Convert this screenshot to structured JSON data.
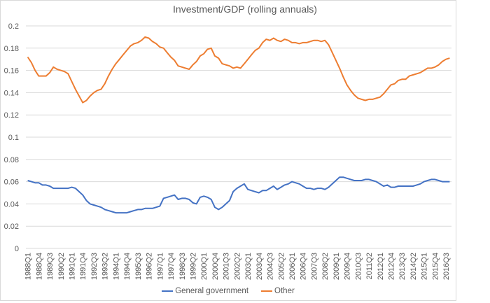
{
  "chart_data": {
    "type": "line",
    "title": "Investment/GDP  (rolling annuals)",
    "xlabel": "",
    "ylabel": "",
    "ylim": [
      0,
      0.2
    ],
    "y_ticks": [
      "0",
      "0.02",
      "0.04",
      "0.06",
      "0.08",
      "0.1",
      "0.12",
      "0.14",
      "0.16",
      "0.18",
      "0.2"
    ],
    "grid": true,
    "legend": "bottom",
    "label_every": 3,
    "categories": [
      "1988Q1",
      "1988Q2",
      "1988Q3",
      "1988Q4",
      "1989Q1",
      "1989Q2",
      "1989Q3",
      "1989Q4",
      "1990Q1",
      "1990Q2",
      "1990Q3",
      "1990Q4",
      "1991Q1",
      "1991Q2",
      "1991Q3",
      "1991Q4",
      "1992Q1",
      "1992Q2",
      "1992Q3",
      "1992Q4",
      "1993Q1",
      "1993Q2",
      "1993Q3",
      "1993Q4",
      "1994Q1",
      "1994Q2",
      "1994Q3",
      "1994Q4",
      "1995Q1",
      "1995Q2",
      "1995Q3",
      "1995Q4",
      "1996Q1",
      "1996Q2",
      "1996Q3",
      "1996Q4",
      "1997Q1",
      "1997Q2",
      "1997Q3",
      "1997Q4",
      "1998Q1",
      "1998Q2",
      "1998Q3",
      "1998Q4",
      "1999Q1",
      "1999Q2",
      "1999Q3",
      "1999Q4",
      "2000Q1",
      "2000Q2",
      "2000Q3",
      "2000Q4",
      "2001Q1",
      "2001Q2",
      "2001Q3",
      "2001Q4",
      "2002Q1",
      "2002Q2",
      "2002Q3",
      "2002Q4",
      "2003Q1",
      "2003Q2",
      "2003Q3",
      "2003Q4",
      "2004Q1",
      "2004Q2",
      "2004Q3",
      "2004Q4",
      "2005Q1",
      "2005Q2",
      "2005Q3",
      "2005Q4",
      "2006Q1",
      "2006Q2",
      "2006Q3",
      "2006Q4",
      "2007Q1",
      "2007Q2",
      "2007Q3",
      "2007Q4",
      "2008Q1",
      "2008Q2",
      "2008Q3",
      "2008Q4",
      "2009Q1",
      "2009Q2",
      "2009Q3",
      "2009Q4",
      "2010Q1",
      "2010Q2",
      "2010Q3",
      "2010Q4",
      "2011Q1",
      "2011Q2",
      "2011Q3",
      "2011Q4",
      "2012Q1",
      "2012Q2",
      "2012Q3",
      "2012Q4",
      "2013Q1",
      "2013Q2",
      "2013Q3",
      "2013Q4",
      "2014Q1",
      "2014Q2",
      "2014Q3",
      "2014Q4",
      "2015Q1",
      "2015Q2",
      "2015Q3",
      "2015Q4",
      "2016Q1",
      "2016Q2",
      "2016Q3",
      "2016Q4"
    ],
    "series": [
      {
        "name": "General government",
        "color": "#4472C4",
        "values": [
          0.061,
          0.06,
          0.059,
          0.059,
          0.057,
          0.057,
          0.056,
          0.054,
          0.054,
          0.054,
          0.054,
          0.054,
          0.055,
          0.054,
          0.051,
          0.048,
          0.043,
          0.04,
          0.039,
          0.038,
          0.037,
          0.035,
          0.034,
          0.033,
          0.032,
          0.032,
          0.032,
          0.032,
          0.033,
          0.034,
          0.035,
          0.035,
          0.036,
          0.036,
          0.036,
          0.037,
          0.038,
          0.045,
          0.046,
          0.047,
          0.048,
          0.044,
          0.045,
          0.045,
          0.044,
          0.041,
          0.04,
          0.046,
          0.047,
          0.046,
          0.044,
          0.037,
          0.035,
          0.037,
          0.04,
          0.043,
          0.051,
          0.054,
          0.056,
          0.058,
          0.053,
          0.052,
          0.051,
          0.05,
          0.052,
          0.052,
          0.054,
          0.056,
          0.053,
          0.055,
          0.057,
          0.058,
          0.06,
          0.059,
          0.058,
          0.056,
          0.054,
          0.054,
          0.053,
          0.054,
          0.054,
          0.053,
          0.055,
          0.058,
          0.061,
          0.064,
          0.064,
          0.063,
          0.062,
          0.061,
          0.061,
          0.061,
          0.062,
          0.062,
          0.061,
          0.06,
          0.058,
          0.056,
          0.057,
          0.055,
          0.055,
          0.056,
          0.056,
          0.056,
          0.056,
          0.056,
          0.057,
          0.058,
          0.06,
          0.061,
          0.062,
          0.062,
          0.061,
          0.06,
          0.06,
          0.06
        ]
      },
      {
        "name": "Other",
        "color": "#ED7D31",
        "values": [
          0.172,
          0.167,
          0.16,
          0.155,
          0.155,
          0.155,
          0.158,
          0.163,
          0.161,
          0.16,
          0.159,
          0.157,
          0.15,
          0.143,
          0.137,
          0.131,
          0.133,
          0.137,
          0.14,
          0.142,
          0.143,
          0.148,
          0.155,
          0.161,
          0.166,
          0.17,
          0.174,
          0.178,
          0.182,
          0.184,
          0.185,
          0.187,
          0.19,
          0.189,
          0.186,
          0.184,
          0.181,
          0.18,
          0.176,
          0.172,
          0.169,
          0.164,
          0.163,
          0.162,
          0.161,
          0.165,
          0.168,
          0.173,
          0.175,
          0.179,
          0.18,
          0.173,
          0.171,
          0.166,
          0.165,
          0.164,
          0.162,
          0.163,
          0.162,
          0.166,
          0.17,
          0.174,
          0.178,
          0.18,
          0.185,
          0.188,
          0.187,
          0.189,
          0.187,
          0.186,
          0.188,
          0.187,
          0.185,
          0.185,
          0.184,
          0.185,
          0.185,
          0.186,
          0.187,
          0.187,
          0.186,
          0.187,
          0.183,
          0.176,
          0.169,
          0.162,
          0.154,
          0.147,
          0.142,
          0.138,
          0.135,
          0.134,
          0.133,
          0.134,
          0.134,
          0.135,
          0.136,
          0.139,
          0.143,
          0.147,
          0.148,
          0.151,
          0.152,
          0.152,
          0.155,
          0.156,
          0.157,
          0.158,
          0.16,
          0.162,
          0.162,
          0.163,
          0.165,
          0.168,
          0.17,
          0.171
        ]
      }
    ]
  }
}
